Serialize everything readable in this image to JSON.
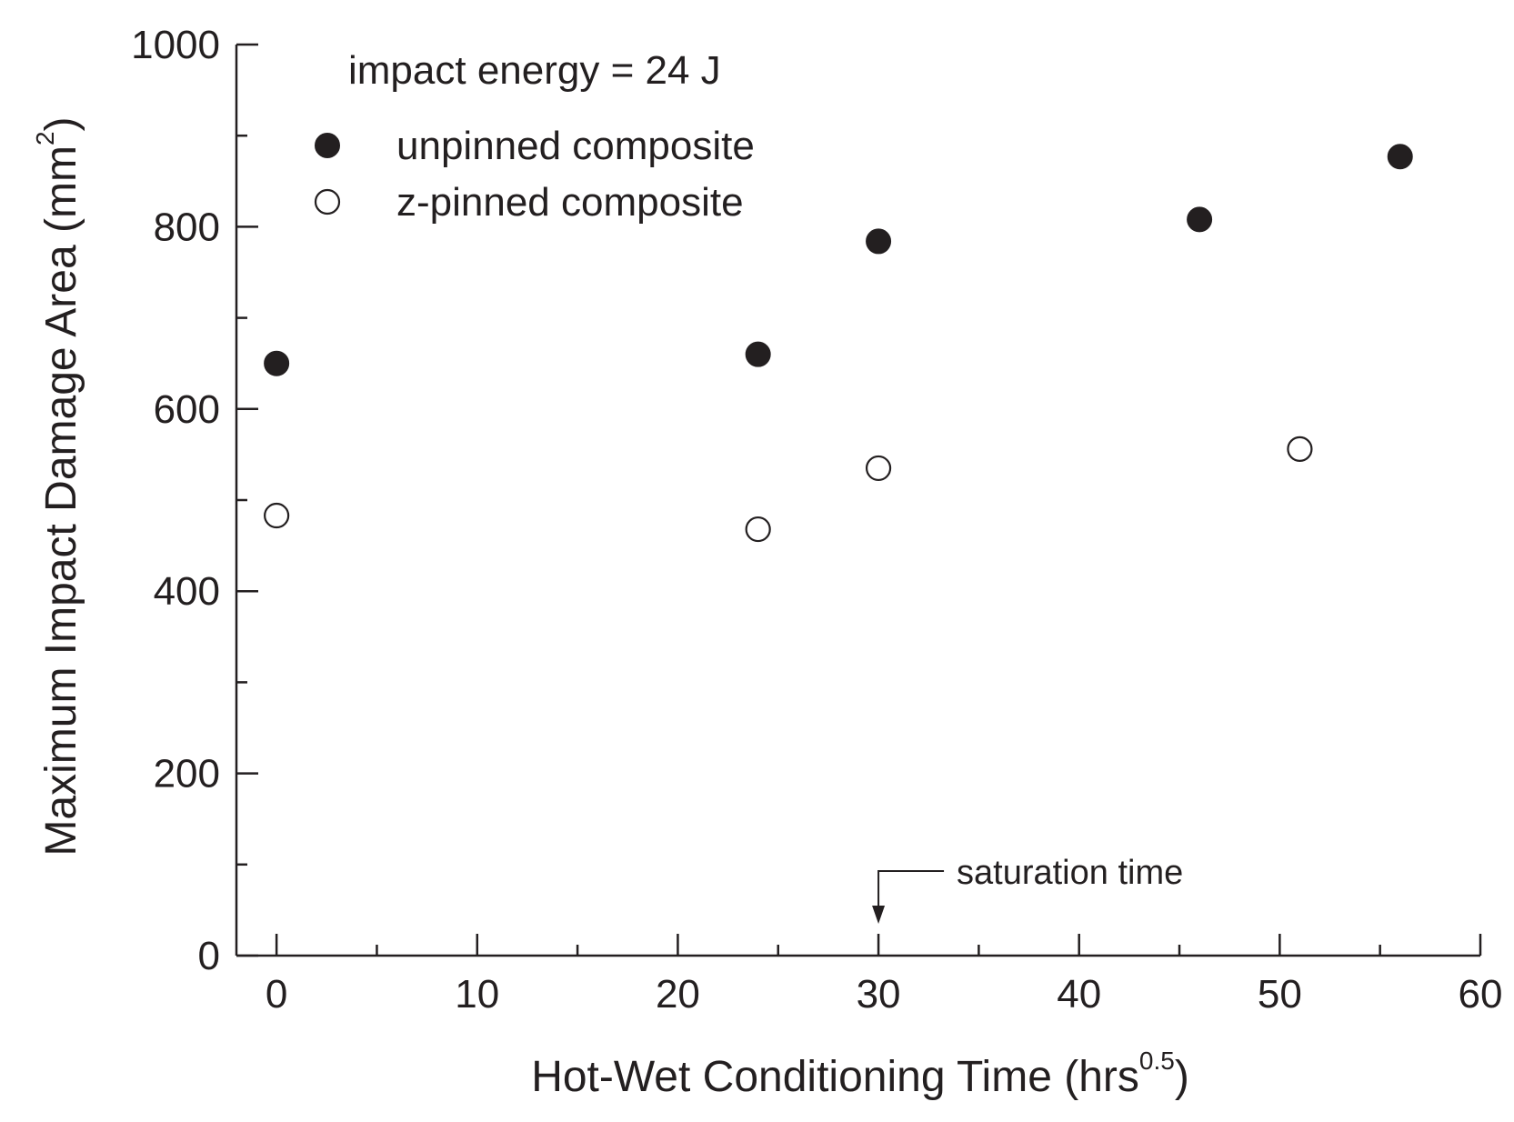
{
  "chart_data": {
    "type": "scatter",
    "title": "",
    "annotation_title": "impact energy = 24 J",
    "xlabel": {
      "main": "Hot-Wet Conditioning Time (hrs",
      "superscript": "0.5",
      "close": ")"
    },
    "ylabel": {
      "main": "Maximum Impact Damage Area (mm",
      "superscript": "2",
      "close": ")"
    },
    "xlim": [
      -2,
      60
    ],
    "ylim": [
      0,
      1000
    ],
    "x_ticks": [
      0,
      10,
      20,
      30,
      40,
      50,
      60
    ],
    "x_minor_ticks": [
      5,
      15,
      25,
      35,
      45,
      55
    ],
    "y_ticks": [
      0,
      200,
      400,
      600,
      800,
      1000
    ],
    "y_minor_ticks": [
      100,
      300,
      500,
      700,
      900
    ],
    "legend_position": "top-left",
    "series": [
      {
        "name": "unpinned composite",
        "marker": "filled-circle",
        "x": [
          0,
          24,
          30,
          46,
          56
        ],
        "y": [
          650,
          660,
          784,
          808,
          877
        ]
      },
      {
        "name": "z-pinned composite",
        "marker": "open-circle",
        "x": [
          0,
          24,
          30,
          51
        ],
        "y": [
          483,
          468,
          535,
          556
        ]
      }
    ],
    "saturation_annotation": {
      "label": "saturation time",
      "x": 30
    }
  }
}
